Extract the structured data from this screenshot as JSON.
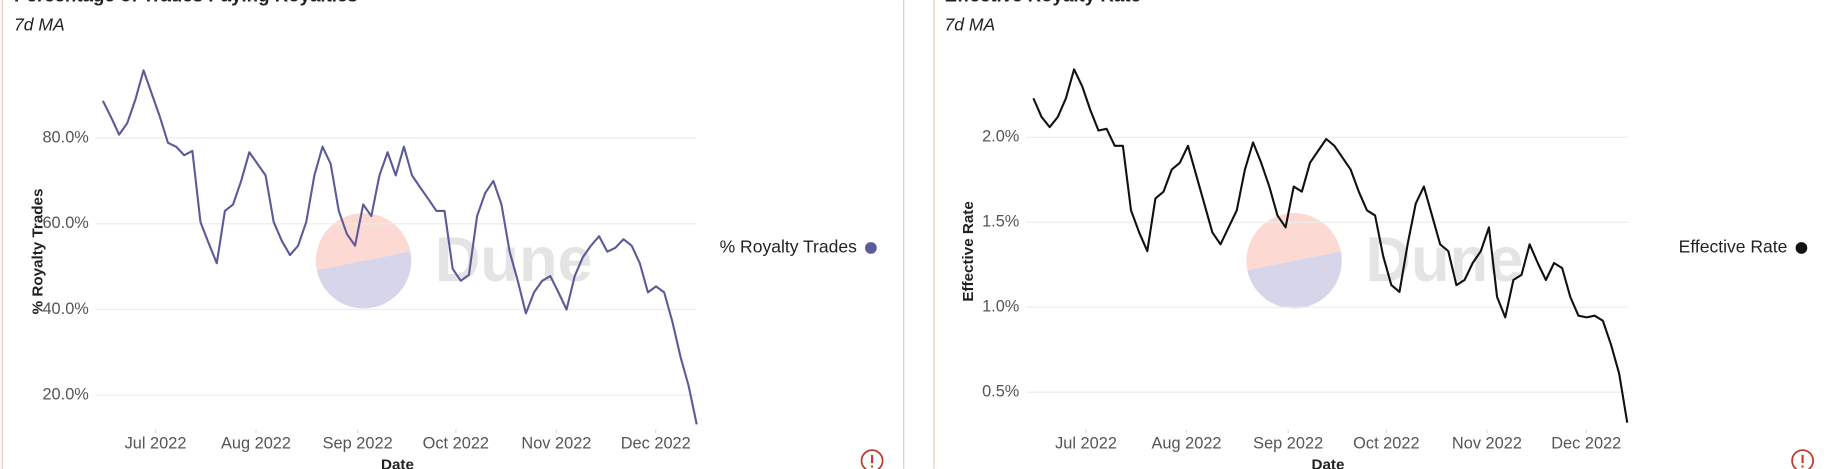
{
  "chart_data": [
    {
      "type": "line",
      "title": "Percentage of Trades Paying Royalties",
      "subtitle": "7d MA",
      "x_label": "Date",
      "y_label": "% Royalty Trades",
      "watermark": "Dune",
      "legend": "right",
      "series": [
        {
          "name": "% Royalty Trades",
          "color": "#5b5b9a",
          "values": [
            88.7,
            84.9,
            80.8,
            83.5,
            89,
            95.8,
            90.4,
            85,
            78.9,
            78,
            76,
            77,
            60.4,
            55.5,
            50.8,
            63,
            64.5,
            70,
            76.7,
            74,
            71.3,
            60.4,
            56,
            52.7,
            54.9,
            60.4,
            71.3,
            78,
            74,
            63,
            57.6,
            54.9,
            64.5,
            61.8,
            71.3,
            76.7,
            71.3,
            78,
            71.3,
            68.5,
            65.8,
            63,
            63,
            49.5,
            46.7,
            48.1,
            61.8,
            67.2,
            70,
            64.5,
            53.5,
            46.7,
            39.1,
            44,
            46.7,
            47.8,
            44,
            40,
            47.8,
            52.2,
            54.9,
            57.1,
            53.5,
            54.4,
            56.4,
            54.9,
            50.8,
            44,
            45.4,
            44,
            37.2,
            29,
            22.2,
            13.2
          ]
        }
      ],
      "xlim": [
        0,
        73
      ],
      "xticks": [
        {
          "value": 6.47,
          "label": "Jul 2022"
        },
        {
          "value": 18.82,
          "label": "Aug 2022"
        },
        {
          "value": 31.32,
          "label": "Sep 2022"
        },
        {
          "value": 43.39,
          "label": "Oct 2022"
        },
        {
          "value": 55.75,
          "label": "Nov 2022"
        },
        {
          "value": 67.96,
          "label": "Dec 2022"
        }
      ],
      "ylim": [
        12,
        100
      ],
      "yticks": [
        {
          "value": 20,
          "label": "20.0%"
        },
        {
          "value": 40,
          "label": "40.0%"
        },
        {
          "value": 60,
          "label": "60.0%"
        },
        {
          "value": 80,
          "label": "80.0%"
        }
      ],
      "grid": true
    },
    {
      "type": "line",
      "title": "Effective Royalty Rate",
      "subtitle": "7d MA",
      "x_label": "Date",
      "y_label": "Effective Rate",
      "watermark": "Dune",
      "legend": "right",
      "series": [
        {
          "name": "Effective Rate",
          "color": "#111111",
          "values": [
            2.23,
            2.12,
            2.06,
            2.12,
            2.23,
            2.4,
            2.3,
            2.16,
            2.04,
            2.05,
            1.95,
            1.95,
            1.57,
            1.44,
            1.33,
            1.64,
            1.68,
            1.81,
            1.85,
            1.95,
            1.78,
            1.61,
            1.44,
            1.37,
            1.47,
            1.57,
            1.81,
            1.97,
            1.85,
            1.71,
            1.54,
            1.47,
            1.71,
            1.68,
            1.85,
            1.92,
            1.99,
            1.95,
            1.88,
            1.81,
            1.68,
            1.57,
            1.54,
            1.3,
            1.13,
            1.09,
            1.37,
            1.61,
            1.71,
            1.54,
            1.37,
            1.33,
            1.13,
            1.16,
            1.26,
            1.33,
            1.47,
            1.06,
            0.94,
            1.16,
            1.19,
            1.37,
            1.26,
            1.16,
            1.26,
            1.23,
            1.06,
            0.95,
            0.94,
            0.95,
            0.92,
            0.78,
            0.61,
            0.32
          ]
        }
      ],
      "xlim": [
        0,
        73
      ],
      "xticks": [
        {
          "value": 6.47,
          "label": "Jul 2022"
        },
        {
          "value": 18.82,
          "label": "Aug 2022"
        },
        {
          "value": 31.32,
          "label": "Sep 2022"
        },
        {
          "value": 43.39,
          "label": "Oct 2022"
        },
        {
          "value": 55.75,
          "label": "Nov 2022"
        },
        {
          "value": 67.96,
          "label": "Dec 2022"
        }
      ],
      "ylim": [
        0.28,
        2.5
      ],
      "yticks": [
        {
          "value": 0.5,
          "label": "0.5%"
        },
        {
          "value": 1.0,
          "label": "1.0%"
        },
        {
          "value": 1.5,
          "label": "1.5%"
        },
        {
          "value": 2.0,
          "label": "2.0%"
        }
      ],
      "grid": true
    }
  ]
}
